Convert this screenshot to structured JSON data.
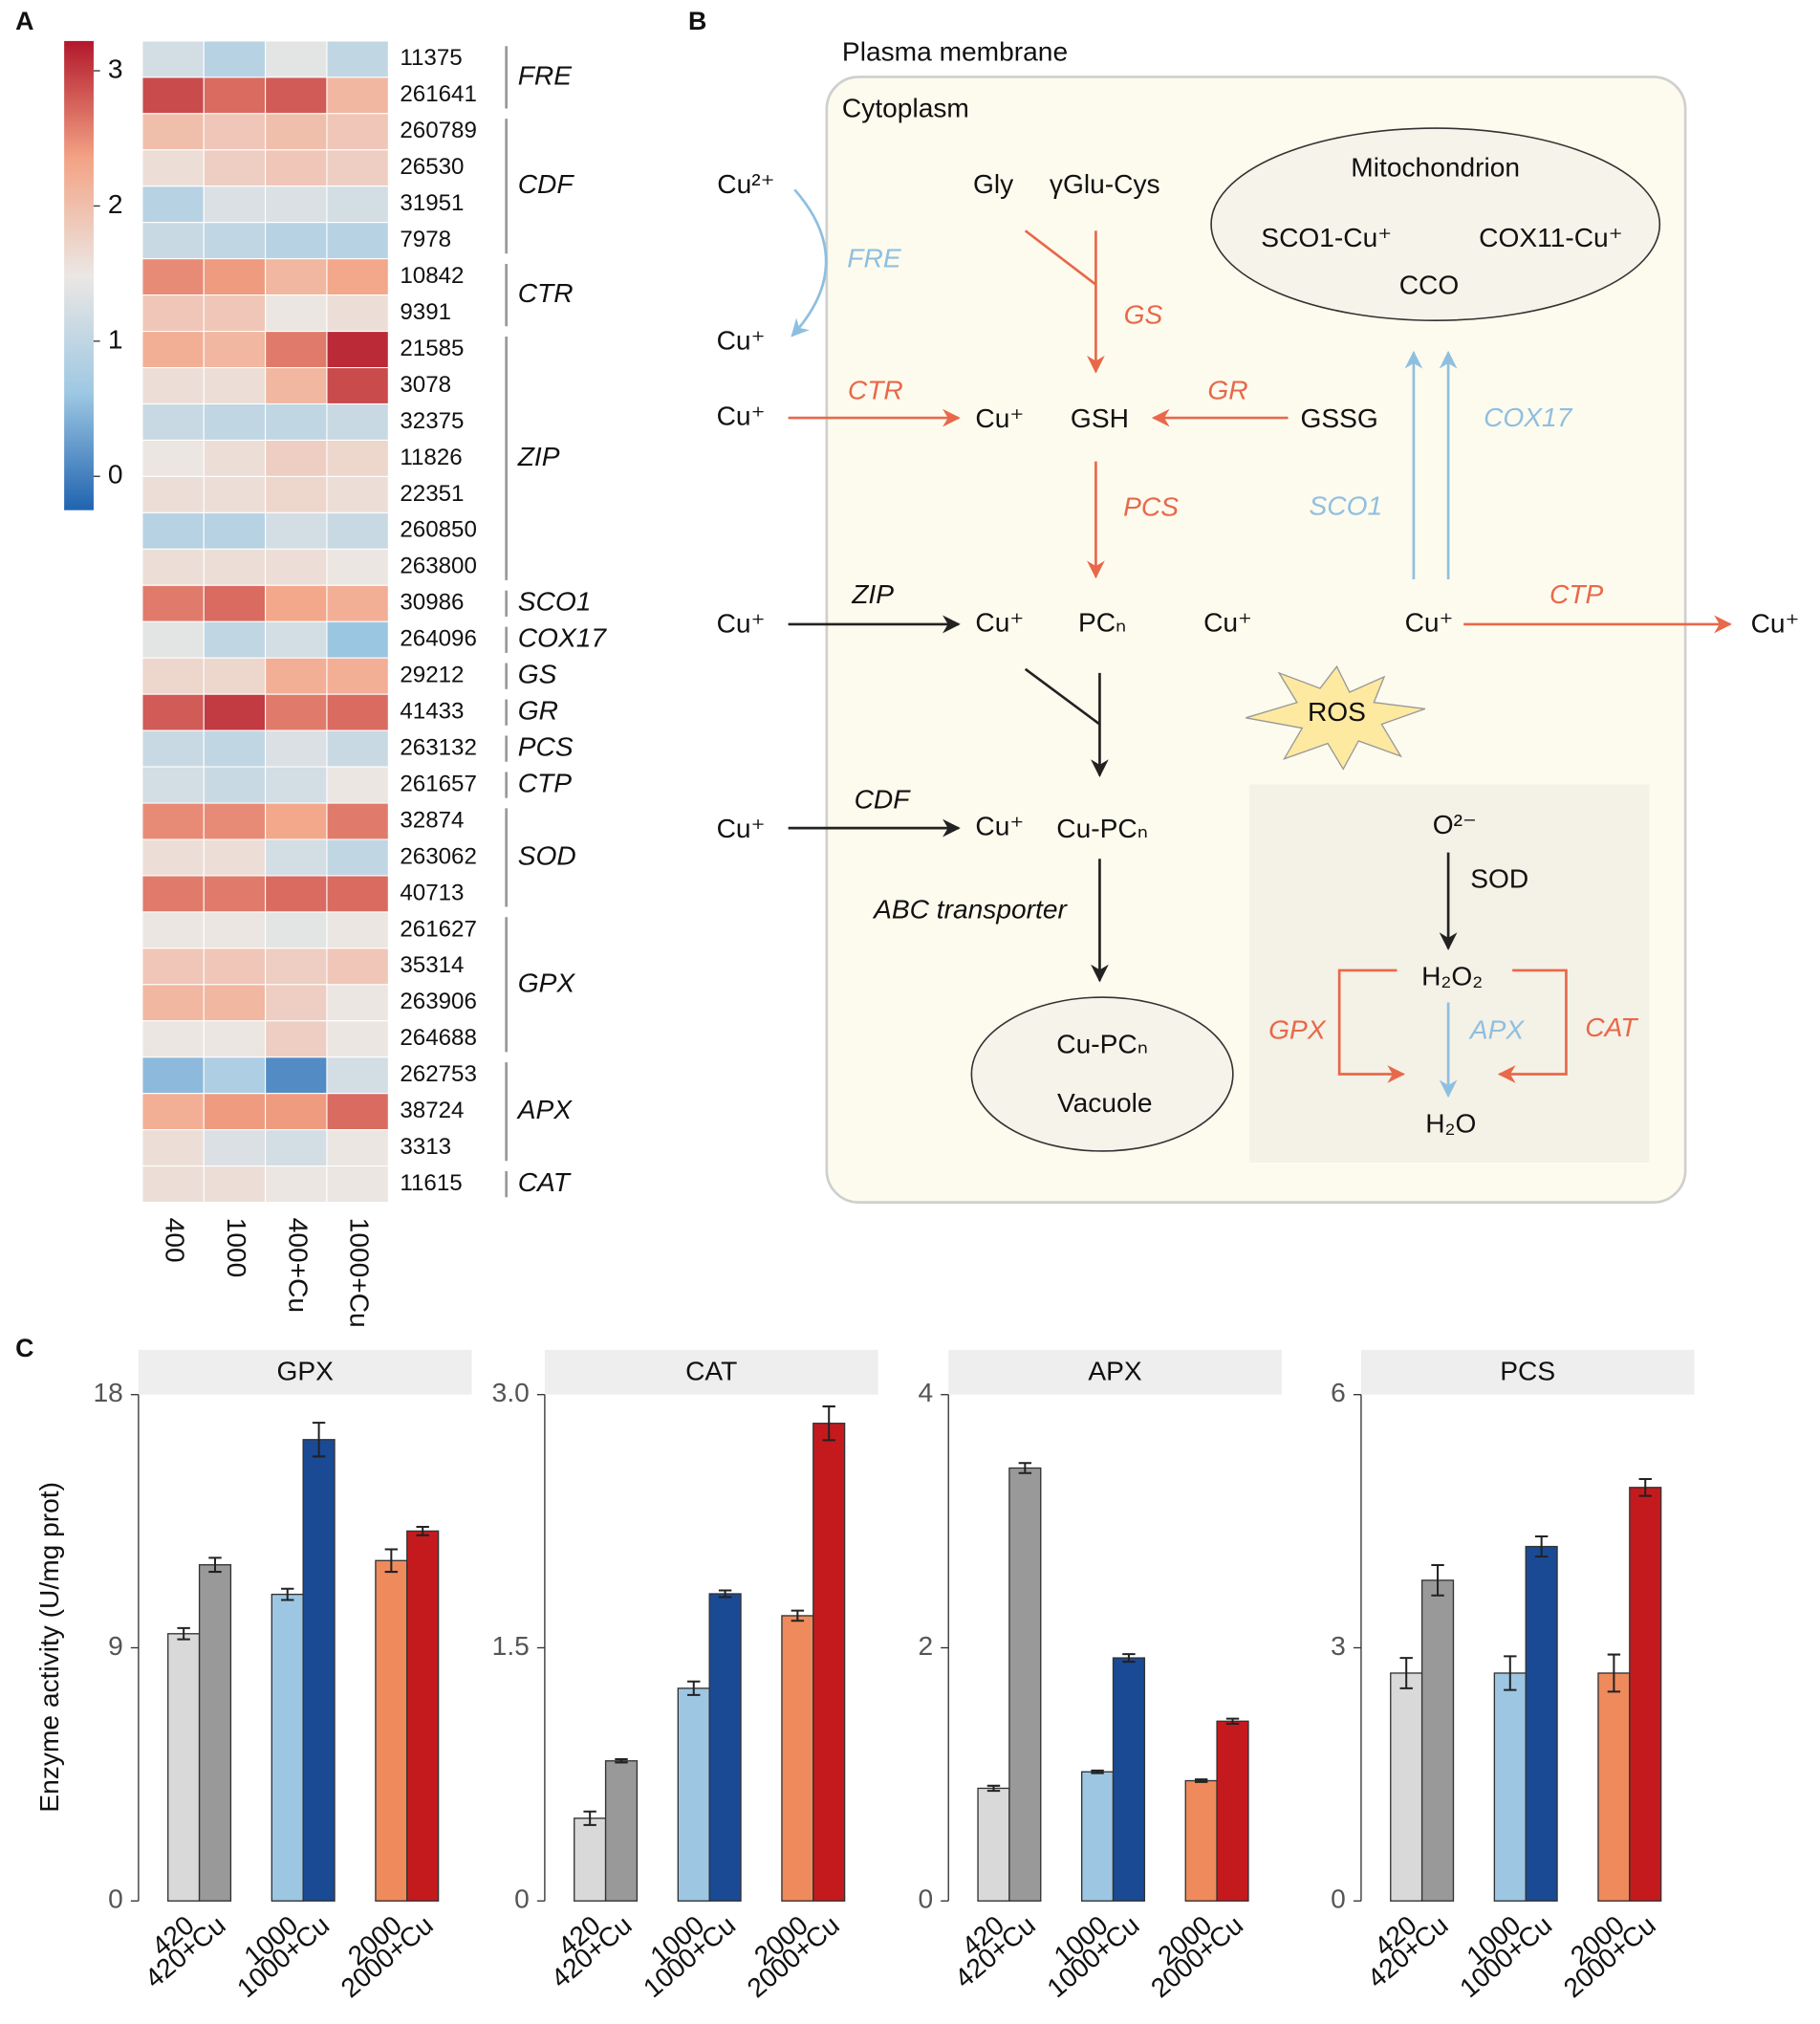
{
  "chart_data": [
    {
      "type": "heatmap",
      "panel": "A",
      "rows": [
        "11375",
        "261641",
        "260789",
        "26530",
        "31951",
        "7978",
        "10842",
        "9391",
        "21585",
        "3078",
        "32375",
        "11826",
        "22351",
        "260850",
        "263800",
        "30986",
        "264096",
        "29212",
        "41433",
        "263132",
        "261657",
        "32874",
        "263062",
        "40713",
        "261627",
        "35314",
        "263906",
        "264688",
        "262753",
        "38724",
        "3313",
        "11615"
      ],
      "columns": [
        "400",
        "1000",
        "400+Cu",
        "1000+Cu"
      ],
      "values": [
        [
          1.2,
          0.9,
          1.4,
          1.0
        ],
        [
          2.9,
          2.7,
          2.8,
          2.1
        ],
        [
          2.0,
          1.9,
          2.0,
          1.9
        ],
        [
          1.6,
          1.8,
          1.9,
          1.8
        ],
        [
          0.9,
          1.3,
          1.3,
          1.2
        ],
        [
          1.1,
          1.0,
          0.9,
          0.9
        ],
        [
          2.5,
          2.4,
          2.1,
          2.3
        ],
        [
          1.9,
          1.9,
          1.5,
          1.6
        ],
        [
          2.2,
          2.1,
          2.6,
          3.1
        ],
        [
          1.6,
          1.6,
          2.1,
          2.9
        ],
        [
          1.1,
          1.0,
          1.0,
          1.1
        ],
        [
          1.5,
          1.6,
          1.8,
          1.7
        ],
        [
          1.6,
          1.6,
          1.7,
          1.6
        ],
        [
          0.9,
          0.9,
          1.2,
          1.1
        ],
        [
          1.6,
          1.6,
          1.6,
          1.5
        ],
        [
          2.6,
          2.7,
          2.3,
          2.2
        ],
        [
          1.4,
          1.0,
          1.2,
          0.6
        ],
        [
          1.7,
          1.7,
          2.2,
          2.2
        ],
        [
          2.8,
          3.0,
          2.6,
          2.7
        ],
        [
          1.1,
          1.0,
          1.3,
          1.1
        ],
        [
          1.2,
          1.1,
          1.2,
          1.5
        ],
        [
          2.5,
          2.5,
          2.3,
          2.6
        ],
        [
          1.6,
          1.6,
          1.2,
          1.0
        ],
        [
          2.6,
          2.6,
          2.7,
          2.7
        ],
        [
          1.5,
          1.5,
          1.4,
          1.5
        ],
        [
          1.9,
          1.9,
          1.8,
          1.9
        ],
        [
          2.1,
          2.1,
          1.8,
          1.5
        ],
        [
          1.5,
          1.5,
          1.8,
          1.5
        ],
        [
          0.5,
          0.8,
          0.1,
          1.2
        ],
        [
          2.2,
          2.4,
          2.4,
          2.7
        ],
        [
          1.6,
          1.3,
          1.2,
          1.5
        ],
        [
          1.6,
          1.6,
          1.5,
          1.5
        ]
      ],
      "groups": [
        {
          "label": "FRE",
          "rows": [
            0,
            1
          ]
        },
        {
          "label": "CDF",
          "rows": [
            2,
            5
          ]
        },
        {
          "label": "CTR",
          "rows": [
            6,
            7
          ]
        },
        {
          "label": "ZIP",
          "rows": [
            8,
            14
          ]
        },
        {
          "label": "SCO1",
          "rows": [
            15,
            15
          ]
        },
        {
          "label": "COX17",
          "rows": [
            16,
            16
          ]
        },
        {
          "label": "GS",
          "rows": [
            17,
            17
          ]
        },
        {
          "label": "GR",
          "rows": [
            18,
            18
          ]
        },
        {
          "label": "PCS",
          "rows": [
            19,
            19
          ]
        },
        {
          "label": "CTP",
          "rows": [
            20,
            20
          ]
        },
        {
          "label": "SOD",
          "rows": [
            21,
            23
          ]
        },
        {
          "label": "GPX",
          "rows": [
            24,
            27
          ]
        },
        {
          "label": "APX",
          "rows": [
            28,
            30
          ]
        },
        {
          "label": "CAT",
          "rows": [
            31,
            31
          ]
        }
      ],
      "vlim": [
        -0.25,
        3.22
      ],
      "colorbar_ticks": [
        0,
        1,
        2,
        3
      ],
      "colorscale": [
        "#2063b0",
        "#9ec8e3",
        "#ebe7e4",
        "#f3a385",
        "#b2182b"
      ]
    },
    {
      "type": "bar",
      "panel": "C",
      "title": "GPX",
      "ylabel": "Enzyme activity (U/mg prot)",
      "categories": [
        "420",
        "420+Cu",
        "1000",
        "1000+Cu",
        "2000",
        "2000+Cu"
      ],
      "values": [
        9.5,
        11.95,
        10.9,
        16.4,
        12.1,
        13.15
      ],
      "errors": [
        0.2,
        0.25,
        0.2,
        0.6,
        0.4,
        0.15
      ],
      "colors": [
        "#d9d9d9",
        "#999999",
        "#9dc6e3",
        "#1a4a94",
        "#ef8a5c",
        "#c41a1e"
      ],
      "ylim": [
        0,
        18
      ],
      "yticks": [
        0,
        9,
        18
      ]
    },
    {
      "type": "bar",
      "title": "CAT",
      "categories": [
        "420",
        "420+Cu",
        "1000",
        "1000+Cu",
        "2000",
        "2000+Cu"
      ],
      "values": [
        0.49,
        0.83,
        1.26,
        1.82,
        1.69,
        2.83
      ],
      "errors": [
        0.04,
        0.01,
        0.04,
        0.02,
        0.03,
        0.1
      ],
      "colors": [
        "#d9d9d9",
        "#999999",
        "#9dc6e3",
        "#1a4a94",
        "#ef8a5c",
        "#c41a1e"
      ],
      "ylim": [
        0,
        3
      ],
      "yticks": [
        0,
        1.5,
        {
          "value": 3,
          "label": "3.0"
        }
      ]
    },
    {
      "type": "bar",
      "title": "APX",
      "categories": [
        "420",
        "420+Cu",
        "1000",
        "1000+Cu",
        "2000",
        "2000+Cu"
      ],
      "values": [
        0.89,
        3.42,
        1.02,
        1.92,
        0.95,
        1.42
      ],
      "errors": [
        0.02,
        0.04,
        0.01,
        0.03,
        0.01,
        0.02
      ],
      "colors": [
        "#d9d9d9",
        "#999999",
        "#9dc6e3",
        "#1a4a94",
        "#ef8a5c",
        "#c41a1e"
      ],
      "ylim": [
        0,
        4
      ],
      "yticks": [
        0,
        2,
        4
      ]
    },
    {
      "type": "bar",
      "title": "PCS",
      "categories": [
        "420",
        "420+Cu",
        "1000",
        "1000+Cu",
        "2000",
        "2000+Cu"
      ],
      "values": [
        2.7,
        3.8,
        2.7,
        4.2,
        2.7,
        4.9
      ],
      "errors": [
        0.18,
        0.18,
        0.2,
        0.12,
        0.22,
        0.1
      ],
      "colors": [
        "#d9d9d9",
        "#999999",
        "#9dc6e3",
        "#1a4a94",
        "#ef8a5c",
        "#c41a1e"
      ],
      "ylim": [
        0,
        6
      ],
      "yticks": [
        0,
        3,
        6
      ]
    }
  ],
  "diagram": {
    "panel": "B",
    "labels": [
      "Plasma membrane",
      "Cytoplasm",
      "Mitochondrion",
      "SCO1-Cu⁺",
      "COX11-Cu⁺",
      "CCO",
      "Cu²⁺",
      "FRE",
      "Cu⁺",
      "Gly",
      "γGlu-Cys",
      "GS",
      "Cu⁺",
      "CTR",
      "Cu⁺",
      "GSH",
      "GR",
      "GSSG",
      "COX17",
      "SCO1",
      "PCS",
      "Cu⁺",
      "ZIP",
      "Cu⁺",
      "PCₙ",
      "Cu⁺",
      "Cu⁺",
      "CTP",
      "Cu⁺",
      "ROS",
      "Cu⁺",
      "CDF",
      "Cu⁺",
      "Cu-PCₙ",
      "ABC transporter",
      "Cu-PCₙ",
      "Vacuole",
      "O²⁻",
      "SOD",
      "H₂O₂",
      "APX",
      "GPX",
      "CAT",
      "H₂O"
    ]
  }
}
